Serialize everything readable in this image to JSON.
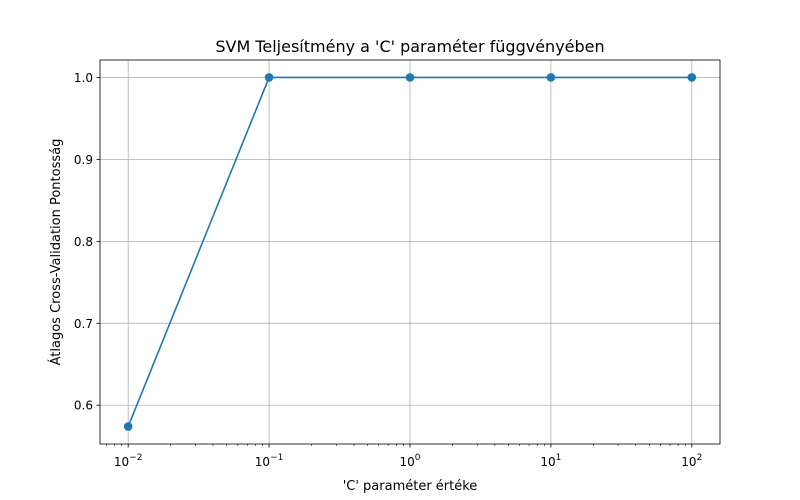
{
  "chart_data": {
    "type": "line",
    "title": "SVM Teljesítmény a 'C' paraméter függvényében",
    "xlabel": "'C' paraméter értéke",
    "ylabel": "Átlagos Cross-Validation Pontosság",
    "x_scale": "log",
    "grid": true,
    "x": [
      0.01,
      0.1,
      1,
      10,
      100
    ],
    "series": [
      {
        "values": [
          0.574,
          1.0,
          1.0,
          1.0,
          1.0
        ],
        "color": "#1f77b4",
        "marker": "circle"
      }
    ],
    "x_ticks": [
      {
        "value": 0.01,
        "base": "10",
        "exp": "−2"
      },
      {
        "value": 0.1,
        "base": "10",
        "exp": "−1"
      },
      {
        "value": 1,
        "base": "10",
        "exp": "0"
      },
      {
        "value": 10,
        "base": "10",
        "exp": "1"
      },
      {
        "value": 100,
        "base": "10",
        "exp": "2"
      }
    ],
    "y_ticks": [
      {
        "value": 0.6,
        "label": "0.6"
      },
      {
        "value": 0.7,
        "label": "0.7"
      },
      {
        "value": 0.8,
        "label": "0.8"
      },
      {
        "value": 0.9,
        "label": "0.9"
      },
      {
        "value": 1.0,
        "label": "1.0"
      }
    ],
    "xlim": [
      0.00631,
      158.5
    ],
    "ylim": [
      0.5527,
      1.0213
    ]
  }
}
